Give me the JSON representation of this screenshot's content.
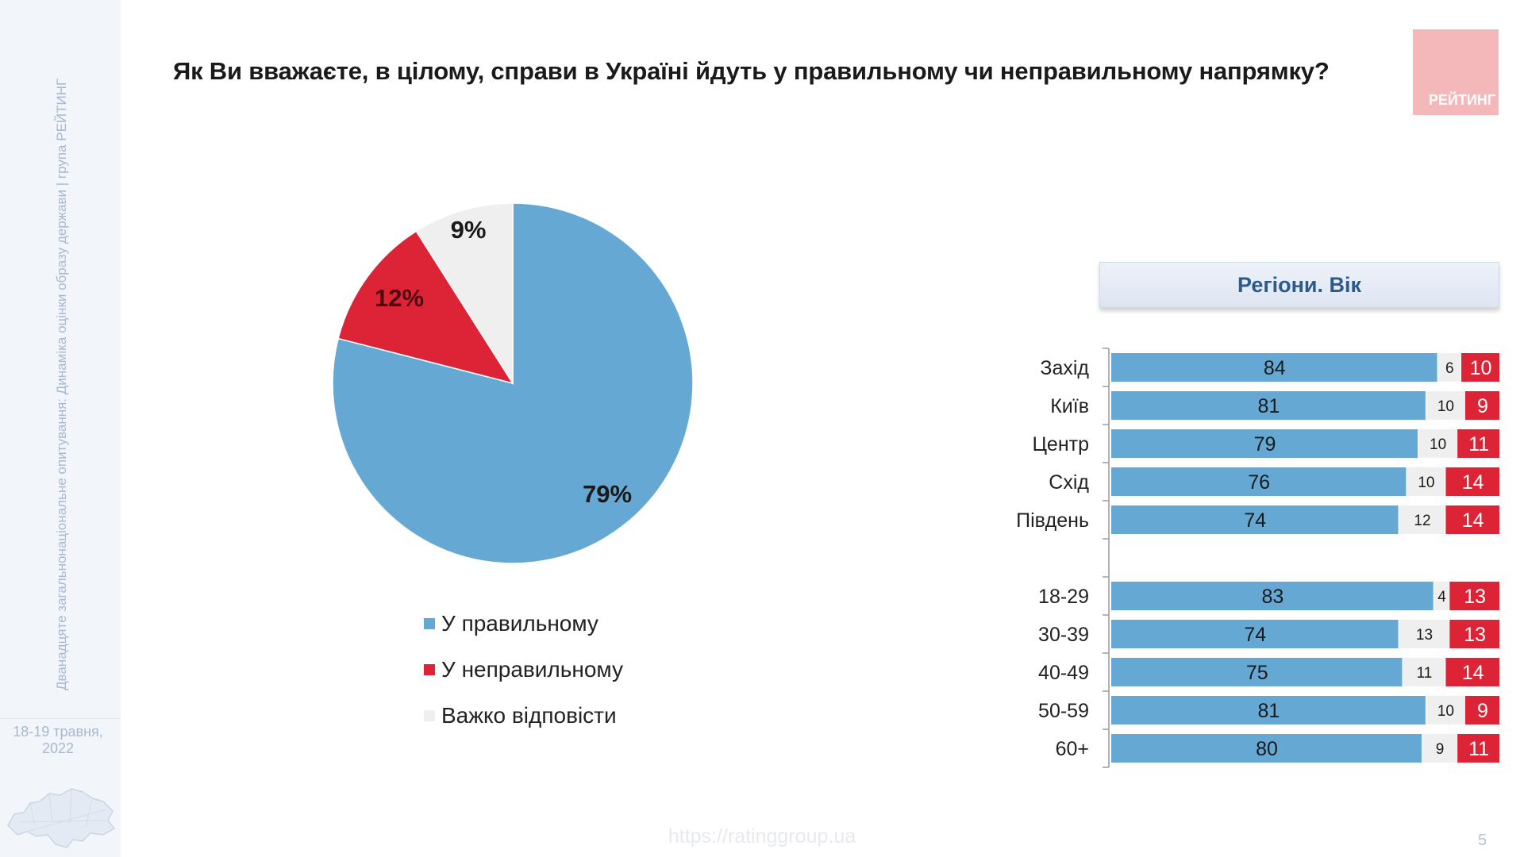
{
  "title": "Як Ви вважаєте, в цілому, справи в Україні йдуть у правильному чи неправильному напрямку?",
  "sidebar": {
    "vertical_text": "Дванадцяте загальнонаціональне опитування: Динаміка оцінки образу держави | група РЕЙТИНГ",
    "date": "18-19 травня, 2022"
  },
  "logo_text": "РЕЙТИНГ",
  "panel_header": "Регіони. Вік",
  "footer_url": "https://ratinggroup.ua",
  "page_number": "5",
  "colors": {
    "right": "#65a8d3",
    "wrong": "#dc2436",
    "hard": "#efefef"
  },
  "chart_data": [
    {
      "type": "pie",
      "labels": [
        "У правильному",
        "У неправильному",
        "Важко відповісти"
      ],
      "values": [
        79,
        12,
        9
      ],
      "value_labels": [
        "79%",
        "12%",
        "9%"
      ],
      "legend_position": "bottom"
    },
    {
      "type": "bar",
      "orientation": "horizontal-stacked",
      "categories": [
        "Захід",
        "Київ",
        "Центр",
        "Схід",
        "Південь",
        "18-29",
        "30-39",
        "40-49",
        "50-59",
        "60+"
      ],
      "series": [
        {
          "name": "У правильному",
          "values": [
            84,
            81,
            79,
            76,
            74,
            83,
            74,
            75,
            81,
            80
          ]
        },
        {
          "name": "Важко відповісти",
          "values": [
            6,
            10,
            10,
            10,
            12,
            4,
            13,
            11,
            10,
            9
          ]
        },
        {
          "name": "У неправильному",
          "values": [
            10,
            9,
            11,
            14,
            14,
            13,
            13,
            14,
            9,
            11
          ]
        }
      ],
      "xlim": [
        0,
        100
      ]
    }
  ]
}
